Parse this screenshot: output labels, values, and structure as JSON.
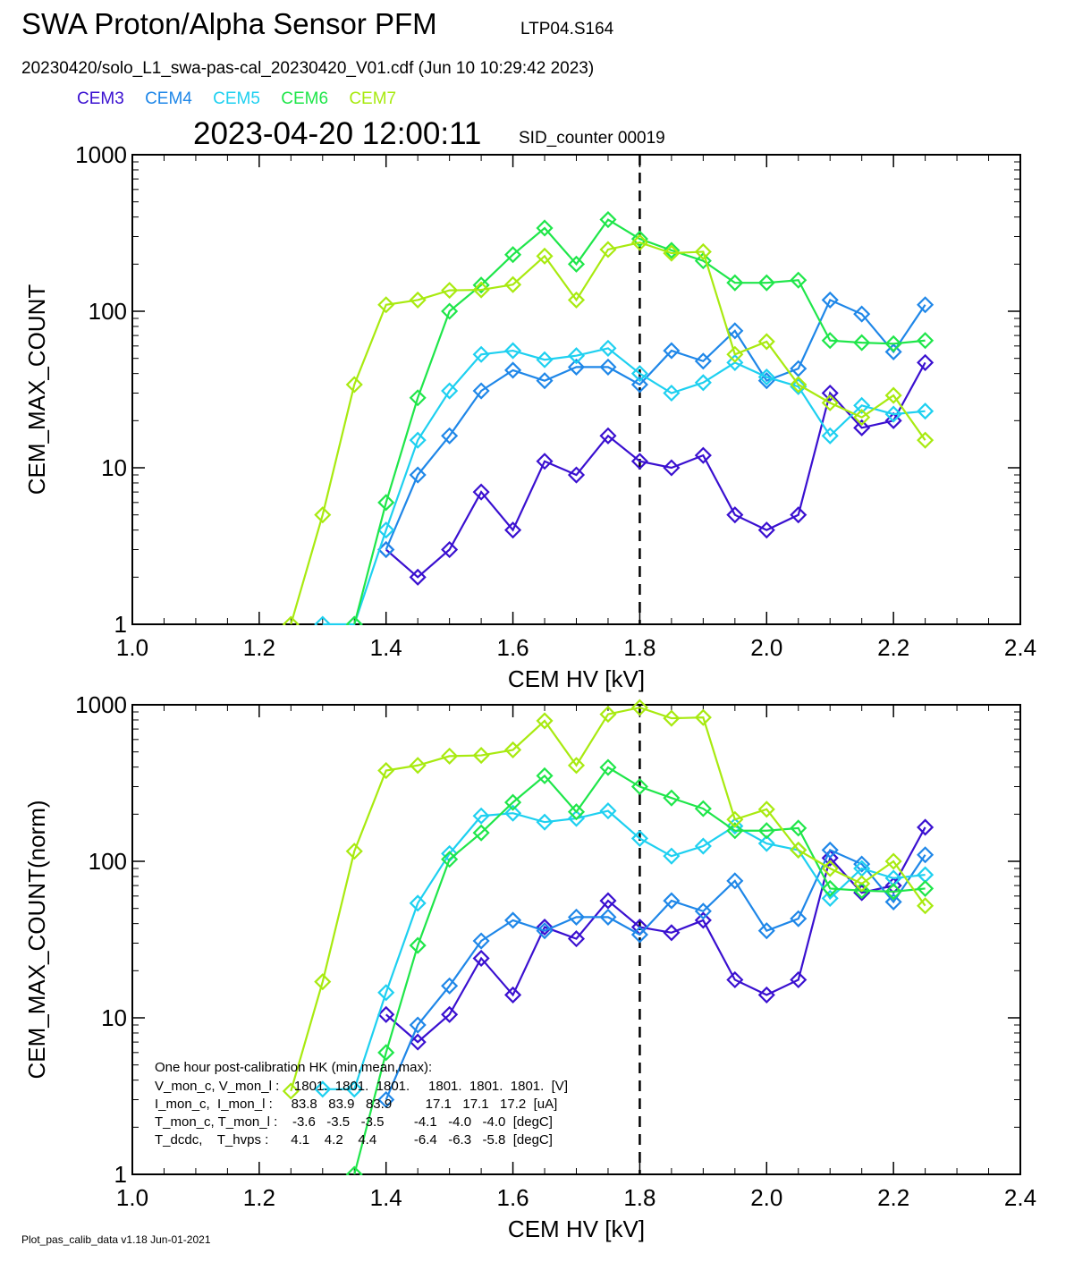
{
  "header": {
    "title": "SWA Proton/Alpha Sensor PFM",
    "subtitle_id": "LTP04.S164",
    "file_line": "20230420/solo_L1_swa-pas-cal_20230420_V01.cdf  (Jun 10 10:29:42 2023)",
    "timestamp": "2023-04-20 12:00:11",
    "sid_counter": "SID_counter 00019"
  },
  "legend": [
    {
      "name": "CEM3",
      "color": "#3a10d0"
    },
    {
      "name": "CEM4",
      "color": "#1f87e8"
    },
    {
      "name": "CEM5",
      "color": "#1ed0f0"
    },
    {
      "name": "CEM6",
      "color": "#1fe64a"
    },
    {
      "name": "CEM7",
      "color": "#a8ea10"
    }
  ],
  "footer": "Plot_pas_calib_data v1.18 Jun-01-2021",
  "hk_box": {
    "heading": "One hour post-calibration HK (min,mean,max):",
    "rows": [
      "V_mon_c, V_mon_l :    1801.  1801.  1801.     1801.  1801.  1801.  [V]",
      "I_mon_c,  I_mon_l :     83.8   83.9   83.9         17.1   17.1   17.2  [uA]",
      "T_mon_c, T_mon_l :    -3.6   -3.5   -3.5        -4.1   -4.0   -4.0  [degC]",
      "T_dcdc,    T_hvps :      4.1    4.2    4.4          -6.4   -6.3   -5.8  [degC]"
    ]
  },
  "chart_data": [
    {
      "type": "line",
      "xlabel": "CEM HV [kV]",
      "ylabel": "CEM_MAX_COUNT",
      "xlim": [
        1.0,
        2.4
      ],
      "ylim": [
        1,
        1000
      ],
      "yscale": "log",
      "xticks": [
        "1.0",
        "1.2",
        "1.4",
        "1.6",
        "1.8",
        "2.0",
        "2.2",
        "2.4"
      ],
      "yticks": [
        "1",
        "10",
        "100",
        "1000"
      ],
      "vline": 1.8,
      "series": [
        {
          "name": "CEM3",
          "color": "#3a10d0",
          "points": [
            [
              1.4,
              3
            ],
            [
              1.45,
              2
            ],
            [
              1.5,
              3
            ],
            [
              1.55,
              7
            ],
            [
              1.6,
              4
            ],
            [
              1.65,
              11
            ],
            [
              1.7,
              9
            ],
            [
              1.75,
              16
            ],
            [
              1.8,
              11
            ],
            [
              1.85,
              10
            ],
            [
              1.9,
              12
            ],
            [
              1.95,
              5
            ],
            [
              2.0,
              4
            ],
            [
              2.05,
              5
            ],
            [
              2.1,
              30
            ],
            [
              2.15,
              18
            ],
            [
              2.2,
              20
            ],
            [
              2.25,
              47
            ]
          ]
        },
        {
          "name": "CEM4",
          "color": "#1f87e8",
          "points": [
            [
              1.4,
              3
            ],
            [
              1.45,
              9
            ],
            [
              1.5,
              16
            ],
            [
              1.55,
              31
            ],
            [
              1.6,
              42
            ],
            [
              1.65,
              36
            ],
            [
              1.7,
              44
            ],
            [
              1.75,
              44
            ],
            [
              1.8,
              34
            ],
            [
              1.85,
              56
            ],
            [
              1.9,
              48
            ],
            [
              1.95,
              75
            ],
            [
              2.0,
              36
            ],
            [
              2.05,
              43
            ],
            [
              2.1,
              118
            ],
            [
              2.15,
              96
            ],
            [
              2.2,
              55
            ],
            [
              2.25,
              110
            ]
          ]
        },
        {
          "name": "CEM5",
          "color": "#1ed0f0",
          "points": [
            [
              1.3,
              1
            ],
            [
              1.35,
              1
            ],
            [
              1.4,
              4
            ],
            [
              1.45,
              15
            ],
            [
              1.5,
              31
            ],
            [
              1.55,
              53
            ],
            [
              1.6,
              56
            ],
            [
              1.65,
              49
            ],
            [
              1.7,
              52
            ],
            [
              1.75,
              58
            ],
            [
              1.8,
              40
            ],
            [
              1.85,
              30
            ],
            [
              1.9,
              35
            ],
            [
              1.95,
              47
            ],
            [
              2.0,
              38
            ],
            [
              2.05,
              33
            ],
            [
              2.1,
              16
            ],
            [
              2.15,
              25
            ],
            [
              2.2,
              22
            ],
            [
              2.25,
              23
            ]
          ]
        },
        {
          "name": "CEM6",
          "color": "#1fe64a",
          "points": [
            [
              1.35,
              1
            ],
            [
              1.4,
              6
            ],
            [
              1.45,
              28
            ],
            [
              1.5,
              100
            ],
            [
              1.55,
              147
            ],
            [
              1.6,
              230
            ],
            [
              1.65,
              340
            ],
            [
              1.7,
              200
            ],
            [
              1.75,
              385
            ],
            [
              1.8,
              290
            ],
            [
              1.85,
              245
            ],
            [
              1.9,
              210
            ],
            [
              1.95,
              152
            ],
            [
              2.0,
              152
            ],
            [
              2.05,
              158
            ],
            [
              2.1,
              65
            ],
            [
              2.15,
              63
            ],
            [
              2.2,
              62
            ],
            [
              2.25,
              65
            ]
          ]
        },
        {
          "name": "CEM7",
          "color": "#a8ea10",
          "points": [
            [
              1.25,
              1
            ],
            [
              1.3,
              5
            ],
            [
              1.35,
              34
            ],
            [
              1.4,
              110
            ],
            [
              1.45,
              118
            ],
            [
              1.5,
              136
            ],
            [
              1.55,
              137
            ],
            [
              1.6,
              148
            ],
            [
              1.65,
              225
            ],
            [
              1.7,
              118
            ],
            [
              1.75,
              248
            ],
            [
              1.8,
              275
            ],
            [
              1.85,
              235
            ],
            [
              1.9,
              240
            ],
            [
              1.95,
              53
            ],
            [
              2.0,
              64
            ],
            [
              2.05,
              34
            ],
            [
              2.1,
              26
            ],
            [
              2.15,
              21
            ],
            [
              2.2,
              29
            ],
            [
              2.25,
              15
            ]
          ]
        }
      ]
    },
    {
      "type": "line",
      "xlabel": "CEM HV [kV]",
      "ylabel": "CEM_MAX_COUNT(norm)",
      "xlim": [
        1.0,
        2.4
      ],
      "ylim": [
        1,
        1000
      ],
      "yscale": "log",
      "xticks": [
        "1.0",
        "1.2",
        "1.4",
        "1.6",
        "1.8",
        "2.0",
        "2.2",
        "2.4"
      ],
      "yticks": [
        "1",
        "10",
        "100",
        "1000"
      ],
      "vline": 1.8,
      "series": [
        {
          "name": "CEM3",
          "color": "#3a10d0",
          "points": [
            [
              1.4,
              10.5
            ],
            [
              1.45,
              7
            ],
            [
              1.5,
              10.5
            ],
            [
              1.55,
              24
            ],
            [
              1.6,
              14
            ],
            [
              1.65,
              38
            ],
            [
              1.7,
              32
            ],
            [
              1.75,
              56
            ],
            [
              1.8,
              38
            ],
            [
              1.85,
              35
            ],
            [
              1.9,
              42
            ],
            [
              1.95,
              17.5
            ],
            [
              2.0,
              14
            ],
            [
              2.05,
              17.5
            ],
            [
              2.1,
              105
            ],
            [
              2.15,
              63
            ],
            [
              2.2,
              70
            ],
            [
              2.25,
              165
            ]
          ]
        },
        {
          "name": "CEM4",
          "color": "#1f87e8",
          "points": [
            [
              1.4,
              3
            ],
            [
              1.45,
              9
            ],
            [
              1.5,
              16
            ],
            [
              1.55,
              31
            ],
            [
              1.6,
              42
            ],
            [
              1.65,
              36
            ],
            [
              1.7,
              44
            ],
            [
              1.75,
              44
            ],
            [
              1.8,
              34
            ],
            [
              1.85,
              56
            ],
            [
              1.9,
              48
            ],
            [
              1.95,
              75
            ],
            [
              2.0,
              36
            ],
            [
              2.05,
              43
            ],
            [
              2.1,
              118
            ],
            [
              2.15,
              96
            ],
            [
              2.2,
              55
            ],
            [
              2.25,
              110
            ]
          ]
        },
        {
          "name": "CEM5",
          "color": "#1ed0f0",
          "points": [
            [
              1.3,
              3.5
            ],
            [
              1.35,
              3.5
            ],
            [
              1.4,
              14.5
            ],
            [
              1.45,
              54
            ],
            [
              1.5,
              112
            ],
            [
              1.55,
              195
            ],
            [
              1.6,
              203
            ],
            [
              1.65,
              178
            ],
            [
              1.7,
              188
            ],
            [
              1.75,
              210
            ],
            [
              1.8,
              140
            ],
            [
              1.85,
              108
            ],
            [
              1.9,
              125
            ],
            [
              1.95,
              168
            ],
            [
              2.0,
              130
            ],
            [
              2.05,
              118
            ],
            [
              2.1,
              58
            ],
            [
              2.15,
              90
            ],
            [
              2.2,
              78
            ],
            [
              2.25,
              82
            ]
          ]
        },
        {
          "name": "CEM6",
          "color": "#1fe64a",
          "points": [
            [
              1.35,
              1
            ],
            [
              1.4,
              6
            ],
            [
              1.45,
              29
            ],
            [
              1.5,
              103
            ],
            [
              1.55,
              152
            ],
            [
              1.6,
              238
            ],
            [
              1.65,
              352
            ],
            [
              1.7,
              207
            ],
            [
              1.75,
              398
            ],
            [
              1.8,
              300
            ],
            [
              1.85,
              254
            ],
            [
              1.9,
              217
            ],
            [
              1.95,
              157
            ],
            [
              2.0,
              157
            ],
            [
              2.05,
              163
            ],
            [
              2.1,
              67
            ],
            [
              2.15,
              65
            ],
            [
              2.2,
              64
            ],
            [
              2.25,
              67
            ]
          ]
        },
        {
          "name": "CEM7",
          "color": "#a8ea10",
          "points": [
            [
              1.25,
              3.4
            ],
            [
              1.3,
              17
            ],
            [
              1.35,
              116
            ],
            [
              1.4,
              380
            ],
            [
              1.45,
              410
            ],
            [
              1.5,
              470
            ],
            [
              1.55,
              475
            ],
            [
              1.6,
              515
            ],
            [
              1.65,
              790
            ],
            [
              1.7,
              410
            ],
            [
              1.75,
              870
            ],
            [
              1.8,
              960
            ],
            [
              1.85,
              820
            ],
            [
              1.9,
              830
            ],
            [
              1.95,
              185
            ],
            [
              2.0,
              215
            ],
            [
              2.05,
              118
            ],
            [
              2.1,
              90
            ],
            [
              2.15,
              72
            ],
            [
              2.2,
              100
            ],
            [
              2.25,
              52
            ]
          ]
        }
      ]
    }
  ]
}
